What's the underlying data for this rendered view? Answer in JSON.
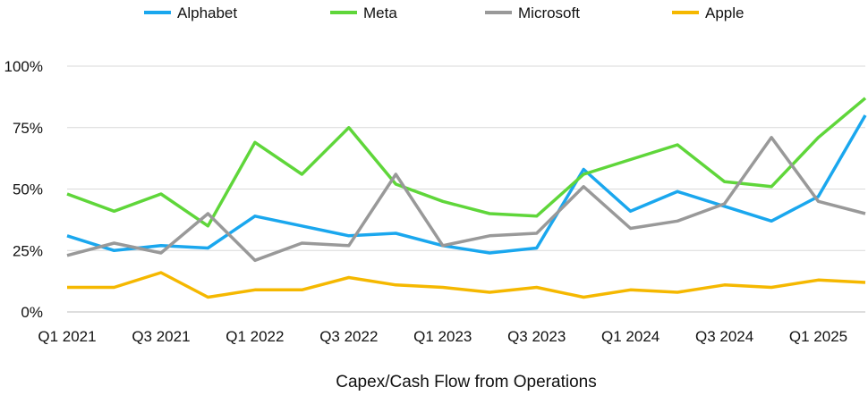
{
  "chart_data": {
    "type": "line",
    "xlabel": "Capex/Cash Flow from Operations",
    "ylabel": "",
    "ylim": [
      0,
      100
    ],
    "yticks": [
      "0%",
      "25%",
      "50%",
      "75%",
      "100%"
    ],
    "ytick_values": [
      0,
      25,
      50,
      75,
      100
    ],
    "grid": "horizontal",
    "legend": "top",
    "categories": [
      "Q1 2021",
      "Q2 2021",
      "Q3 2021",
      "Q4 2021",
      "Q1 2022",
      "Q2 2022",
      "Q3 2022",
      "Q4 2022",
      "Q1 2023",
      "Q2 2023",
      "Q3 2023",
      "Q4 2023",
      "Q1 2024",
      "Q2 2024",
      "Q3 2024",
      "Q4 2024",
      "Q1 2025",
      "Q2 2025"
    ],
    "xtick_labels": [
      {
        "index": 0,
        "label": "Q1 2021"
      },
      {
        "index": 2,
        "label": "Q3 2021"
      },
      {
        "index": 4,
        "label": "Q1 2022"
      },
      {
        "index": 6,
        "label": "Q3 2022"
      },
      {
        "index": 8,
        "label": "Q1 2023"
      },
      {
        "index": 10,
        "label": "Q3 2023"
      },
      {
        "index": 12,
        "label": "Q1 2024"
      },
      {
        "index": 14,
        "label": "Q3 2024"
      },
      {
        "index": 16,
        "label": "Q1 2025"
      }
    ],
    "series": [
      {
        "name": "Alphabet",
        "color": "#1aa7ee",
        "values": [
          31,
          25,
          27,
          26,
          39,
          35,
          31,
          32,
          27,
          24,
          26,
          58,
          41,
          49,
          43,
          37,
          47,
          80
        ]
      },
      {
        "name": "Meta",
        "color": "#5fd63a",
        "values": [
          48,
          41,
          48,
          35,
          69,
          56,
          75,
          52,
          45,
          40,
          39,
          56,
          62,
          68,
          53,
          51,
          71,
          87
        ]
      },
      {
        "name": "Microsoft",
        "color": "#999999",
        "values": [
          23,
          28,
          24,
          40,
          21,
          28,
          27,
          56,
          27,
          31,
          32,
          51,
          34,
          37,
          44,
          71,
          45,
          40
        ]
      },
      {
        "name": "Apple",
        "color": "#f5b800",
        "values": [
          10,
          10,
          16,
          6,
          9,
          9,
          14,
          11,
          10,
          8,
          10,
          6,
          9,
          8,
          11,
          10,
          13,
          12
        ]
      }
    ]
  }
}
